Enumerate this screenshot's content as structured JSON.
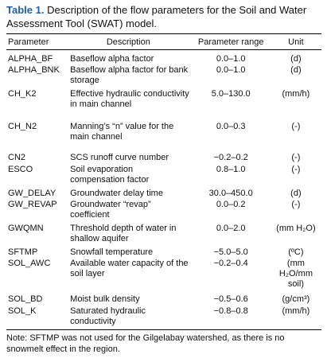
{
  "title": {
    "label": "Table 1.",
    "text": "Description of the flow parameters for the Soil and Water Assessment Tool (SWAT) model."
  },
  "table": {
    "headers": [
      "Parameter",
      "Description",
      "Parameter range",
      "Unit"
    ],
    "rows": [
      [
        "ALPHA_BF",
        "Baseflow alpha factor",
        "0.0–1.0",
        "(d)"
      ],
      [
        "ALPHA_BNK",
        "Baseflow alpha factor for bank storage",
        "0.0–1.0",
        "(d)"
      ],
      [
        "CH_K2",
        "Effective hydraulic conductivity in main channel",
        "5.0–130.0",
        "(mm/h)"
      ],
      [
        "CH_N2",
        "Manning’s “n” value for the main channel",
        "0.0–0.3",
        "(-)"
      ],
      [
        "CN2",
        "SCS runoff curve number",
        "−0.2–0.2",
        "(-)"
      ],
      [
        "ESCO",
        "Soil evaporation compensation factor",
        "0.8–1.0",
        "(-)"
      ],
      [
        "GW_DELAY",
        "Groundwater delay time",
        "30.0–450.0",
        "(d)"
      ],
      [
        "GW_REVAP",
        "Groundwater “revap” coefficient",
        "0.0–0.2",
        "(-)"
      ],
      [
        "GWQMN",
        "Threshold depth of water in shallow aquifer",
        "0.0–2.0",
        "(mm H₂O)"
      ],
      [
        "SFTMP",
        "Snowfall temperature",
        "−5.0–5.0",
        "(ºC)"
      ],
      [
        "SOL_AWC",
        "Available water capacity of the soil layer",
        "−0.2–0.4",
        "(mm H₂O/mm soil)"
      ],
      [
        "SOL_BD",
        "Moist bulk density",
        "−0.5–0.6",
        "(g/cm³)"
      ],
      [
        "SOL_K",
        "Saturated hydraulic conductivity",
        "−0.8–0.8",
        "(mm/h)"
      ]
    ]
  },
  "note": "Note: SFTMP was not used for the Gilgelabay watershed, as there is no snowmelt effect in the region."
}
